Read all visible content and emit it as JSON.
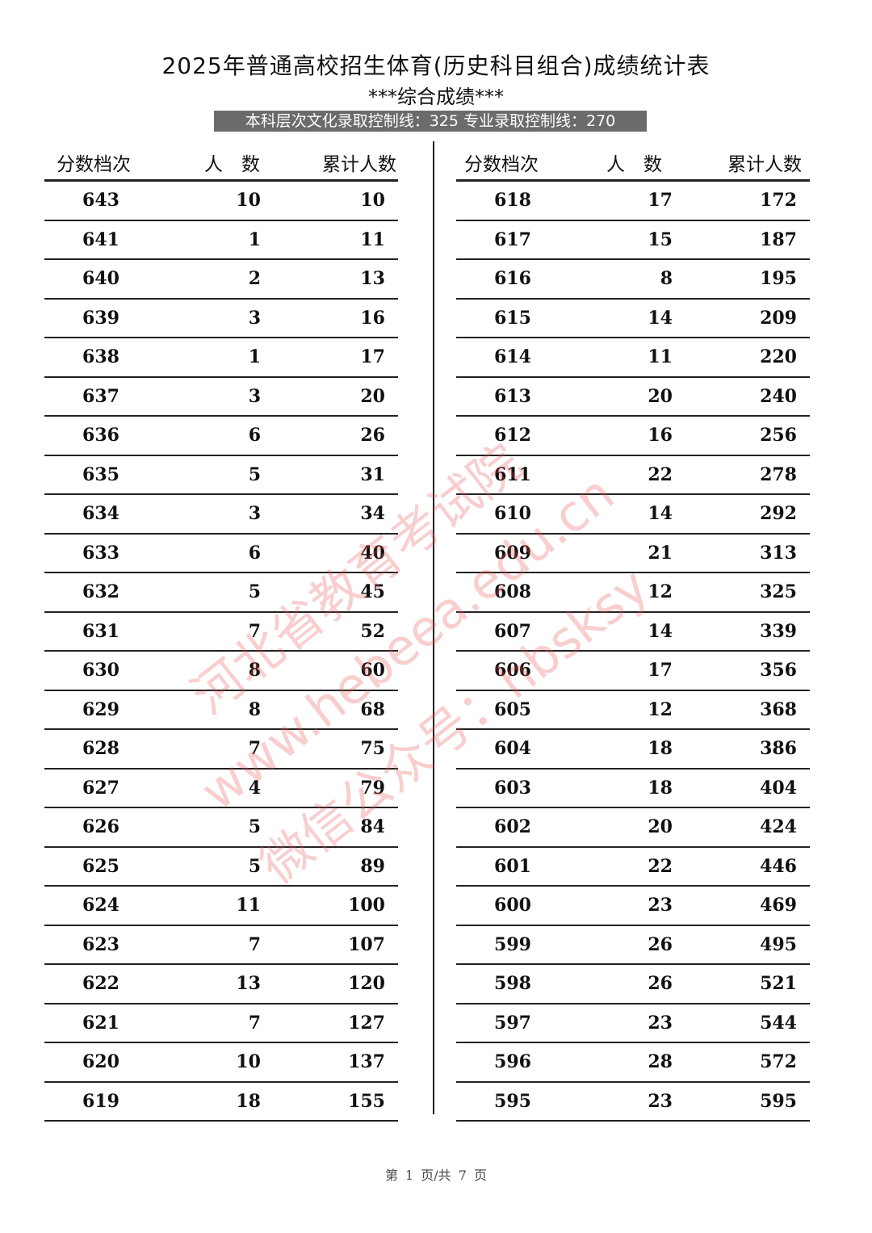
{
  "title": "2025年普通高校招生体育(历史科目组合)成绩统计表",
  "subtitle": "***综合成绩***",
  "banner": "本科层次文化录取控制线：325  专业录取控制线：270",
  "headers": {
    "score": "分数档次",
    "count": "人　数",
    "cumulative": "累计人数"
  },
  "left_rows": [
    [
      "643",
      "10",
      "10"
    ],
    [
      "641",
      "1",
      "11"
    ],
    [
      "640",
      "2",
      "13"
    ],
    [
      "639",
      "3",
      "16"
    ],
    [
      "638",
      "1",
      "17"
    ],
    [
      "637",
      "3",
      "20"
    ],
    [
      "636",
      "6",
      "26"
    ],
    [
      "635",
      "5",
      "31"
    ],
    [
      "634",
      "3",
      "34"
    ],
    [
      "633",
      "6",
      "40"
    ],
    [
      "632",
      "5",
      "45"
    ],
    [
      "631",
      "7",
      "52"
    ],
    [
      "630",
      "8",
      "60"
    ],
    [
      "629",
      "8",
      "68"
    ],
    [
      "628",
      "7",
      "75"
    ],
    [
      "627",
      "4",
      "79"
    ],
    [
      "626",
      "5",
      "84"
    ],
    [
      "625",
      "5",
      "89"
    ],
    [
      "624",
      "11",
      "100"
    ],
    [
      "623",
      "7",
      "107"
    ],
    [
      "622",
      "13",
      "120"
    ],
    [
      "621",
      "7",
      "127"
    ],
    [
      "620",
      "10",
      "137"
    ],
    [
      "619",
      "18",
      "155"
    ]
  ],
  "right_rows": [
    [
      "618",
      "17",
      "172"
    ],
    [
      "617",
      "15",
      "187"
    ],
    [
      "616",
      "8",
      "195"
    ],
    [
      "615",
      "14",
      "209"
    ],
    [
      "614",
      "11",
      "220"
    ],
    [
      "613",
      "20",
      "240"
    ],
    [
      "612",
      "16",
      "256"
    ],
    [
      "611",
      "22",
      "278"
    ],
    [
      "610",
      "14",
      "292"
    ],
    [
      "609",
      "21",
      "313"
    ],
    [
      "608",
      "12",
      "325"
    ],
    [
      "607",
      "14",
      "339"
    ],
    [
      "606",
      "17",
      "356"
    ],
    [
      "605",
      "12",
      "368"
    ],
    [
      "604",
      "18",
      "386"
    ],
    [
      "603",
      "18",
      "404"
    ],
    [
      "602",
      "20",
      "424"
    ],
    [
      "601",
      "22",
      "446"
    ],
    [
      "600",
      "23",
      "469"
    ],
    [
      "599",
      "26",
      "495"
    ],
    [
      "598",
      "26",
      "521"
    ],
    [
      "597",
      "23",
      "544"
    ],
    [
      "596",
      "28",
      "572"
    ],
    [
      "595",
      "23",
      "595"
    ]
  ],
  "watermark": {
    "line1": "河北省教育考试院",
    "line2": "www.hebeea.edu.cn",
    "line3": "微信公众号：hbsksy",
    "color": "#e65050"
  },
  "footer": "第 1 页/共 7 页"
}
